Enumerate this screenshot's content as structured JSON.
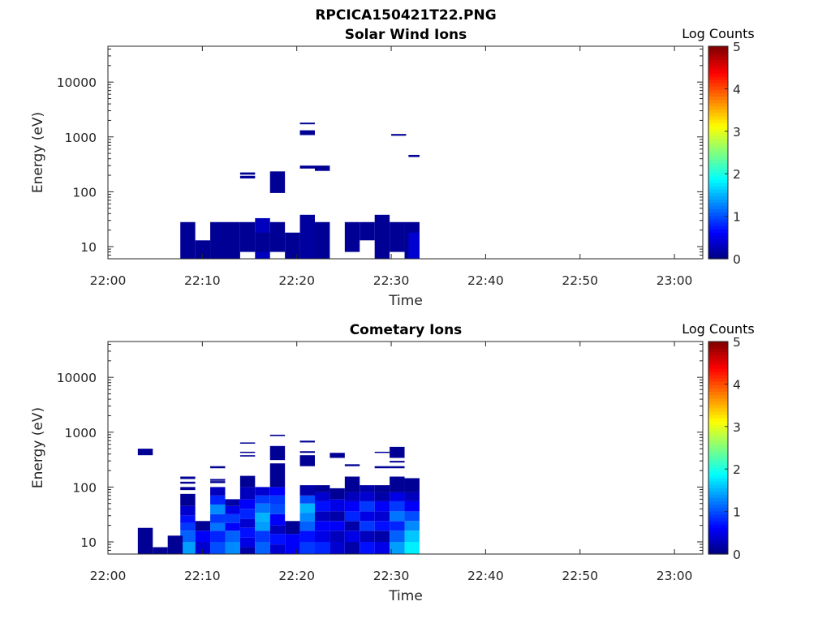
{
  "figure_title": "RPCICA150421T22.PNG",
  "chart_data": [
    {
      "type": "heatmap",
      "title": "Solar Wind Ions",
      "xlabel": "Time",
      "ylabel": "Energy (eV)",
      "x_scale": "time",
      "y_scale": "log",
      "x_ticks": [
        "22:00",
        "22:10",
        "22:20",
        "22:30",
        "22:40",
        "22:50",
        "23:00"
      ],
      "y_ticks": [
        "10",
        "100",
        "1000",
        "10000"
      ],
      "ylim": [
        6,
        45000
      ],
      "xlim": [
        "22:00",
        "23:03"
      ],
      "colorbar": {
        "label": "Log Counts",
        "ticks": [
          "0",
          "1",
          "2",
          "3",
          "4",
          "5"
        ],
        "range": [
          0,
          5
        ],
        "colormap": "jet"
      },
      "cells": [
        {
          "t0": "22:07:40",
          "t1": "22:09:15",
          "e0": 6,
          "e1": 28,
          "v": 0.1
        },
        {
          "t0": "22:09:15",
          "t1": "22:10:50",
          "e0": 6,
          "e1": 13,
          "v": 0.1
        },
        {
          "t0": "22:10:50",
          "t1": "22:14:00",
          "e0": 6,
          "e1": 28,
          "v": 0.1
        },
        {
          "t0": "22:14:00",
          "t1": "22:15:35",
          "e0": 8,
          "e1": 28,
          "v": 0.1
        },
        {
          "t0": "22:15:35",
          "t1": "22:17:10",
          "e0": 6,
          "e1": 33,
          "v": 0.3
        },
        {
          "t0": "22:15:35",
          "t1": "22:17:10",
          "e0": 8,
          "e1": 18,
          "v": 0.1
        },
        {
          "t0": "22:17:10",
          "t1": "22:18:45",
          "e0": 8,
          "e1": 28,
          "v": 0.1
        },
        {
          "t0": "22:18:45",
          "t1": "22:20:20",
          "e0": 6,
          "e1": 18,
          "v": 0.1
        },
        {
          "t0": "22:20:20",
          "t1": "22:21:55",
          "e0": 6,
          "e1": 38,
          "v": 0.15
        },
        {
          "t0": "22:21:55",
          "t1": "22:23:30",
          "e0": 6,
          "e1": 28,
          "v": 0.1
        },
        {
          "t0": "22:25:05",
          "t1": "22:26:40",
          "e0": 8,
          "e1": 28,
          "v": 0.1
        },
        {
          "t0": "22:26:40",
          "t1": "22:28:15",
          "e0": 13,
          "e1": 28,
          "v": 0.1
        },
        {
          "t0": "22:28:15",
          "t1": "22:29:50",
          "e0": 6,
          "e1": 38,
          "v": 0.1
        },
        {
          "t0": "22:29:50",
          "t1": "22:31:25",
          "e0": 8,
          "e1": 28,
          "v": 0.1
        },
        {
          "t0": "22:31:25",
          "t1": "22:33:00",
          "e0": 6,
          "e1": 28,
          "v": 0.1
        },
        {
          "t0": "22:31:50",
          "t1": "22:33:00",
          "e0": 6,
          "e1": 18,
          "v": 0.4
        },
        {
          "t0": "22:14:00",
          "t1": "22:15:35",
          "e0": 175,
          "e1": 195,
          "v": 0.1
        },
        {
          "t0": "22:14:00",
          "t1": "22:15:35",
          "e0": 205,
          "e1": 225,
          "v": 0.1
        },
        {
          "t0": "22:17:10",
          "t1": "22:18:45",
          "e0": 95,
          "e1": 235,
          "v": 0.1
        },
        {
          "t0": "22:20:20",
          "t1": "22:21:55",
          "e0": 1080,
          "e1": 1320,
          "v": 0.1
        },
        {
          "t0": "22:20:20",
          "t1": "22:21:55",
          "e0": 1700,
          "e1": 1820,
          "v": 0.1
        },
        {
          "t0": "22:20:20",
          "t1": "22:21:55",
          "e0": 265,
          "e1": 300,
          "v": 0.1
        },
        {
          "t0": "22:21:55",
          "t1": "22:23:30",
          "e0": 240,
          "e1": 300,
          "v": 0.1
        },
        {
          "t0": "22:30:00",
          "t1": "22:31:35",
          "e0": 1050,
          "e1": 1130,
          "v": 0.1
        },
        {
          "t0": "22:31:50",
          "t1": "22:33:00",
          "e0": 430,
          "e1": 470,
          "v": 0.1
        }
      ]
    },
    {
      "type": "heatmap",
      "title": "Cometary Ions",
      "xlabel": "Time",
      "ylabel": "Energy (eV)",
      "x_scale": "time",
      "y_scale": "log",
      "x_ticks": [
        "22:00",
        "22:10",
        "22:20",
        "22:30",
        "22:40",
        "22:50",
        "23:00"
      ],
      "y_ticks": [
        "10",
        "100",
        "1000",
        "10000"
      ],
      "ylim": [
        6,
        45000
      ],
      "xlim": [
        "22:00",
        "23:03"
      ],
      "colorbar": {
        "label": "Log Counts",
        "ticks": [
          "0",
          "1",
          "2",
          "3",
          "4",
          "5"
        ],
        "range": [
          0,
          5
        ],
        "colormap": "jet"
      },
      "columns": [
        {
          "t0": "22:07:40",
          "t1": "22:09:15",
          "bins": [
            [
              6,
              10,
              1.4
            ],
            [
              10,
              16,
              1.1
            ],
            [
              16,
              22,
              0.9
            ],
            [
              22,
              30,
              0.7
            ],
            [
              30,
              45,
              0.4
            ],
            [
              45,
              75,
              0.1
            ],
            [
              88,
              100,
              0.1
            ],
            [
              115,
              125,
              0.1
            ],
            [
              140,
              155,
              0.1
            ]
          ]
        },
        {
          "t0": "22:09:15",
          "t1": "22:10:50",
          "bins": [
            [
              6,
              10,
              0.4
            ],
            [
              10,
              16,
              0.6
            ],
            [
              16,
              24,
              0.1
            ]
          ]
        },
        {
          "t0": "22:10:50",
          "t1": "22:12:25",
          "bins": [
            [
              6,
              10,
              1.0
            ],
            [
              10,
              16,
              0.8
            ],
            [
              16,
              22,
              1.2
            ],
            [
              22,
              32,
              0.9
            ],
            [
              32,
              48,
              1.3
            ],
            [
              48,
              70,
              0.8
            ],
            [
              70,
              100,
              0.3
            ],
            [
              118,
              128,
              0.1
            ],
            [
              130,
              140,
              0.1
            ],
            [
              220,
              240,
              0.1
            ]
          ]
        },
        {
          "t0": "22:12:25",
          "t1": "22:14:00",
          "bins": [
            [
              6,
              10,
              1.3
            ],
            [
              10,
              16,
              1.1
            ],
            [
              16,
              22,
              0.6
            ],
            [
              22,
              32,
              0.9
            ],
            [
              32,
              45,
              0.5
            ],
            [
              45,
              60,
              0.2
            ]
          ]
        },
        {
          "t0": "22:14:00",
          "t1": "22:15:35",
          "bins": [
            [
              6,
              8,
              0.2
            ],
            [
              8,
              12,
              0.5
            ],
            [
              12,
              18,
              0.7
            ],
            [
              18,
              26,
              0.4
            ],
            [
              26,
              40,
              0.8
            ],
            [
              40,
              60,
              0.6
            ],
            [
              60,
              100,
              0.3
            ],
            [
              100,
              160,
              0.1
            ],
            [
              360,
              380,
              0.1
            ],
            [
              420,
              440,
              0.1
            ],
            [
              620,
              650,
              0.1
            ]
          ]
        },
        {
          "t0": "22:15:35",
          "t1": "22:17:10",
          "bins": [
            [
              6,
              10,
              1.1
            ],
            [
              10,
              16,
              0.9
            ],
            [
              16,
              24,
              1.4
            ],
            [
              24,
              34,
              1.5
            ],
            [
              34,
              50,
              1.2
            ],
            [
              50,
              70,
              0.9
            ],
            [
              70,
              100,
              0.4
            ]
          ]
        },
        {
          "t0": "22:17:10",
          "t1": "22:18:45",
          "bins": [
            [
              6,
              9,
              0.4
            ],
            [
              9,
              14,
              0.7
            ],
            [
              14,
              20,
              0.3
            ],
            [
              20,
              32,
              0.6
            ],
            [
              32,
              48,
              1.0
            ],
            [
              48,
              70,
              0.9
            ],
            [
              70,
              100,
              0.6
            ],
            [
              100,
              270,
              0.1
            ],
            [
              310,
              560,
              0.1
            ],
            [
              850,
              900,
              0.1
            ]
          ]
        },
        {
          "t0": "22:18:45",
          "t1": "22:20:20",
          "bins": [
            [
              6,
              14,
              0.6
            ],
            [
              14,
              24,
              0.1
            ]
          ]
        },
        {
          "t0": "22:20:20",
          "t1": "22:21:55",
          "bins": [
            [
              6,
              10,
              0.9
            ],
            [
              10,
              16,
              0.7
            ],
            [
              16,
              24,
              1.1
            ],
            [
              24,
              34,
              1.3
            ],
            [
              34,
              50,
              1.5
            ],
            [
              50,
              70,
              1.0
            ],
            [
              70,
              108,
              0.2
            ],
            [
              240,
              380,
              0.1
            ],
            [
              420,
              450,
              0.1
            ],
            [
              650,
              700,
              0.1
            ]
          ]
        },
        {
          "t0": "22:21:55",
          "t1": "22:23:30",
          "bins": [
            [
              6,
              10,
              0.8
            ],
            [
              10,
              16,
              0.5
            ],
            [
              16,
              24,
              0.6
            ],
            [
              24,
              36,
              0.3
            ],
            [
              36,
              55,
              0.7
            ],
            [
              55,
              80,
              0.4
            ],
            [
              80,
              108,
              0.1
            ]
          ]
        },
        {
          "t0": "22:23:30",
          "t1": "22:25:05",
          "bins": [
            [
              6,
              10,
              0.4
            ],
            [
              10,
              16,
              0.3
            ],
            [
              16,
              24,
              0.6
            ],
            [
              24,
              36,
              0.2
            ],
            [
              36,
              60,
              0.5
            ],
            [
              60,
              95,
              0.1
            ],
            [
              340,
              420,
              0.1
            ]
          ]
        },
        {
          "t0": "22:25:05",
          "t1": "22:26:40",
          "bins": [
            [
              6,
              10,
              0.2
            ],
            [
              10,
              16,
              0.5
            ],
            [
              16,
              24,
              0.2
            ],
            [
              24,
              36,
              0.8
            ],
            [
              36,
              55,
              0.6
            ],
            [
              55,
              80,
              0.3
            ],
            [
              80,
              155,
              0.1
            ],
            [
              240,
              260,
              0.1
            ]
          ]
        },
        {
          "t0": "22:26:40",
          "t1": "22:28:15",
          "bins": [
            [
              6,
              10,
              0.7
            ],
            [
              10,
              16,
              0.3
            ],
            [
              16,
              24,
              0.9
            ],
            [
              24,
              36,
              0.5
            ],
            [
              36,
              55,
              0.9
            ],
            [
              55,
              80,
              0.4
            ],
            [
              80,
              108,
              0.2
            ]
          ]
        },
        {
          "t0": "22:28:15",
          "t1": "22:29:50",
          "bins": [
            [
              6,
              10,
              0.5
            ],
            [
              10,
              16,
              0.2
            ],
            [
              16,
              24,
              0.7
            ],
            [
              24,
              36,
              0.4
            ],
            [
              36,
              55,
              0.6
            ],
            [
              55,
              80,
              0.2
            ],
            [
              80,
              108,
              0.1
            ],
            [
              220,
              240,
              0.1
            ],
            [
              420,
              440,
              0.1
            ]
          ]
        },
        {
          "t0": "22:29:50",
          "t1": "22:31:25",
          "bins": [
            [
              6,
              10,
              1.4
            ],
            [
              10,
              16,
              1.1
            ],
            [
              16,
              24,
              0.8
            ],
            [
              24,
              36,
              1.2
            ],
            [
              36,
              55,
              0.9
            ],
            [
              55,
              80,
              0.5
            ],
            [
              80,
              155,
              0.1
            ],
            [
              220,
              240,
              0.1
            ],
            [
              280,
              300,
              0.1
            ],
            [
              340,
              540,
              0.1
            ]
          ]
        },
        {
          "t0": "22:31:25",
          "t1": "22:33:00",
          "bins": [
            [
              6,
              10,
              1.8
            ],
            [
              10,
              16,
              1.6
            ],
            [
              16,
              24,
              1.3
            ],
            [
              24,
              36,
              1.0
            ],
            [
              36,
              55,
              0.6
            ],
            [
              55,
              80,
              0.3
            ],
            [
              80,
              145,
              0.1
            ]
          ]
        },
        {
          "t0": "22:03:10",
          "t1": "22:04:45",
          "bins": [
            [
              6,
              18,
              0.1
            ],
            [
              380,
              500,
              0.1
            ]
          ]
        },
        {
          "t0": "22:04:45",
          "t1": "22:06:20",
          "bins": [
            [
              6,
              8,
              0.1
            ]
          ]
        },
        {
          "t0": "22:06:20",
          "t1": "22:07:55",
          "bins": [
            [
              6,
              13,
              0.1
            ]
          ]
        }
      ]
    }
  ]
}
